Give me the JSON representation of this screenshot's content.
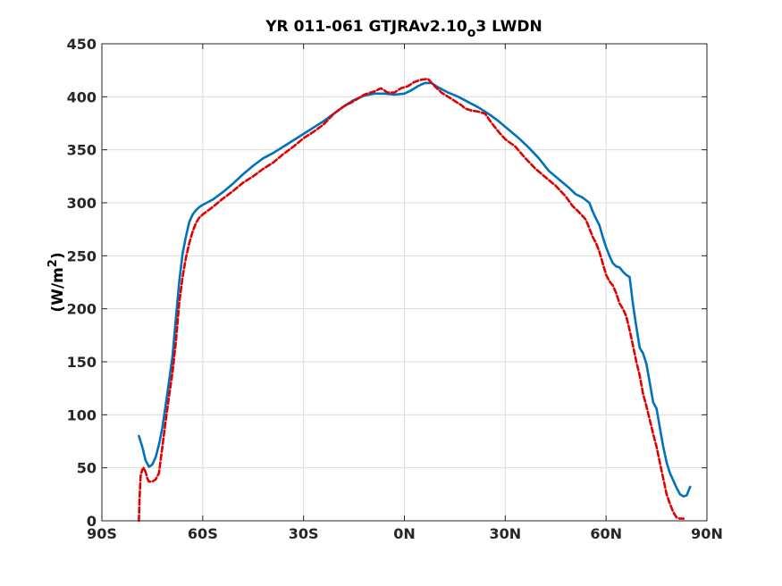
{
  "chart_data": {
    "type": "line",
    "title": "YR 011-061 GTJRAv2.10",
    "title_subscript": "o",
    "title_suffix": "3 LWDN",
    "xlabel": "",
    "ylabel": "(W/m",
    "ylabel_superscript": "2",
    "ylabel_suffix": ")",
    "xlim": [
      -90,
      90
    ],
    "ylim": [
      0,
      450
    ],
    "x_ticks": [
      -90,
      -60,
      -30,
      0,
      30,
      60,
      90
    ],
    "x_tick_labels": [
      "90S",
      "60S",
      "30S",
      "0N",
      "30N",
      "60N",
      "90N"
    ],
    "y_ticks": [
      0,
      50,
      100,
      150,
      200,
      250,
      300,
      350,
      400,
      450
    ],
    "y_tick_labels": [
      "0",
      "50",
      "100",
      "150",
      "200",
      "250",
      "300",
      "350",
      "400",
      "450"
    ],
    "grid": true,
    "legend": "none",
    "series": [
      {
        "color": "#0072BD",
        "style": "solid",
        "points": [
          [
            -79,
            80
          ],
          [
            -78,
            70
          ],
          [
            -77,
            57
          ],
          [
            -76,
            51
          ],
          [
            -75,
            53
          ],
          [
            -74,
            60
          ],
          [
            -73,
            72
          ],
          [
            -72,
            88
          ],
          [
            -71,
            110
          ],
          [
            -70,
            132
          ],
          [
            -69,
            155
          ],
          [
            -68,
            190
          ],
          [
            -67,
            225
          ],
          [
            -66,
            252
          ],
          [
            -65,
            268
          ],
          [
            -64,
            282
          ],
          [
            -63,
            289
          ],
          [
            -62,
            293
          ],
          [
            -61,
            296
          ],
          [
            -60,
            298
          ],
          [
            -57,
            303
          ],
          [
            -54,
            310
          ],
          [
            -51,
            318
          ],
          [
            -48,
            327
          ],
          [
            -45,
            335
          ],
          [
            -42,
            342
          ],
          [
            -39,
            347
          ],
          [
            -36,
            353
          ],
          [
            -33,
            359
          ],
          [
            -30,
            365
          ],
          [
            -27,
            371
          ],
          [
            -24,
            377
          ],
          [
            -21,
            384
          ],
          [
            -18,
            391
          ],
          [
            -15,
            397
          ],
          [
            -12,
            401
          ],
          [
            -9,
            403
          ],
          [
            -6,
            403
          ],
          [
            -3,
            402
          ],
          [
            0,
            403
          ],
          [
            2,
            406
          ],
          [
            4,
            410
          ],
          [
            6,
            413
          ],
          [
            8,
            413
          ],
          [
            10,
            409
          ],
          [
            13,
            404
          ],
          [
            16,
            400
          ],
          [
            19,
            395
          ],
          [
            22,
            390
          ],
          [
            25,
            384
          ],
          [
            28,
            377
          ],
          [
            31,
            369
          ],
          [
            34,
            361
          ],
          [
            37,
            352
          ],
          [
            40,
            342
          ],
          [
            43,
            330
          ],
          [
            46,
            322
          ],
          [
            49,
            314
          ],
          [
            51,
            308
          ],
          [
            53,
            305
          ],
          [
            55,
            300
          ],
          [
            56,
            292
          ],
          [
            57,
            285
          ],
          [
            58,
            279
          ],
          [
            59,
            268
          ],
          [
            60,
            258
          ],
          [
            61,
            250
          ],
          [
            62,
            243
          ],
          [
            63,
            240
          ],
          [
            64,
            239
          ],
          [
            65,
            235
          ],
          [
            66,
            232
          ],
          [
            67,
            230
          ],
          [
            68,
            204
          ],
          [
            69,
            183
          ],
          [
            70,
            163
          ],
          [
            71,
            158
          ],
          [
            72,
            148
          ],
          [
            73,
            130
          ],
          [
            74,
            112
          ],
          [
            75,
            106
          ],
          [
            76,
            88
          ],
          [
            77,
            70
          ],
          [
            78,
            55
          ],
          [
            79,
            45
          ],
          [
            80,
            38
          ],
          [
            81,
            31
          ],
          [
            82,
            25
          ],
          [
            83,
            23
          ],
          [
            84,
            24
          ],
          [
            85,
            32
          ]
        ]
      },
      {
        "color": "#E00000",
        "style": "dashed",
        "points": [
          [
            -79,
            0
          ],
          [
            -78.8,
            20
          ],
          [
            -78.5,
            42
          ],
          [
            -78,
            48
          ],
          [
            -77.5,
            50
          ],
          [
            -77,
            46
          ],
          [
            -76.5,
            40
          ],
          [
            -76,
            37
          ],
          [
            -75,
            37
          ],
          [
            -74,
            39
          ],
          [
            -73,
            45
          ],
          [
            -72,
            70
          ],
          [
            -71,
            95
          ],
          [
            -70,
            118
          ],
          [
            -69,
            140
          ],
          [
            -68,
            168
          ],
          [
            -67,
            205
          ],
          [
            -66,
            230
          ],
          [
            -65,
            248
          ],
          [
            -64,
            262
          ],
          [
            -63,
            273
          ],
          [
            -62,
            281
          ],
          [
            -61,
            286
          ],
          [
            -60,
            289
          ],
          [
            -57,
            296
          ],
          [
            -54,
            304
          ],
          [
            -51,
            311
          ],
          [
            -48,
            319
          ],
          [
            -45,
            325
          ],
          [
            -42,
            332
          ],
          [
            -39,
            338
          ],
          [
            -36,
            346
          ],
          [
            -33,
            353
          ],
          [
            -30,
            361
          ],
          [
            -27,
            367
          ],
          [
            -24,
            374
          ],
          [
            -21,
            384
          ],
          [
            -18,
            391
          ],
          [
            -15,
            396
          ],
          [
            -12,
            402
          ],
          [
            -9,
            405
          ],
          [
            -7,
            408
          ],
          [
            -5,
            404
          ],
          [
            -3,
            404
          ],
          [
            -1,
            408
          ],
          [
            1,
            410
          ],
          [
            3,
            414
          ],
          [
            5,
            416
          ],
          [
            7,
            417
          ],
          [
            9,
            410
          ],
          [
            11,
            404
          ],
          [
            13,
            400
          ],
          [
            15,
            396
          ],
          [
            17,
            392
          ],
          [
            18,
            389
          ],
          [
            20,
            387
          ],
          [
            22,
            386
          ],
          [
            24,
            384
          ],
          [
            26,
            375
          ],
          [
            28,
            367
          ],
          [
            30,
            360
          ],
          [
            33,
            353
          ],
          [
            36,
            342
          ],
          [
            39,
            332
          ],
          [
            42,
            324
          ],
          [
            45,
            316
          ],
          [
            48,
            306
          ],
          [
            50,
            297
          ],
          [
            52,
            291
          ],
          [
            54,
            284
          ],
          [
            55,
            276
          ],
          [
            56,
            268
          ],
          [
            57,
            262
          ],
          [
            58,
            254
          ],
          [
            59,
            243
          ],
          [
            60,
            232
          ],
          [
            61,
            226
          ],
          [
            62,
            222
          ],
          [
            63,
            215
          ],
          [
            64,
            205
          ],
          [
            65,
            200
          ],
          [
            66,
            193
          ],
          [
            67,
            180
          ],
          [
            68,
            165
          ],
          [
            69,
            150
          ],
          [
            70,
            137
          ],
          [
            71,
            120
          ],
          [
            72,
            108
          ],
          [
            73,
            95
          ],
          [
            74,
            82
          ],
          [
            75,
            70
          ],
          [
            76,
            55
          ],
          [
            77,
            40
          ],
          [
            78,
            25
          ],
          [
            79,
            16
          ],
          [
            80,
            8
          ],
          [
            81,
            3
          ],
          [
            82,
            2
          ],
          [
            83,
            2
          ]
        ]
      }
    ]
  }
}
